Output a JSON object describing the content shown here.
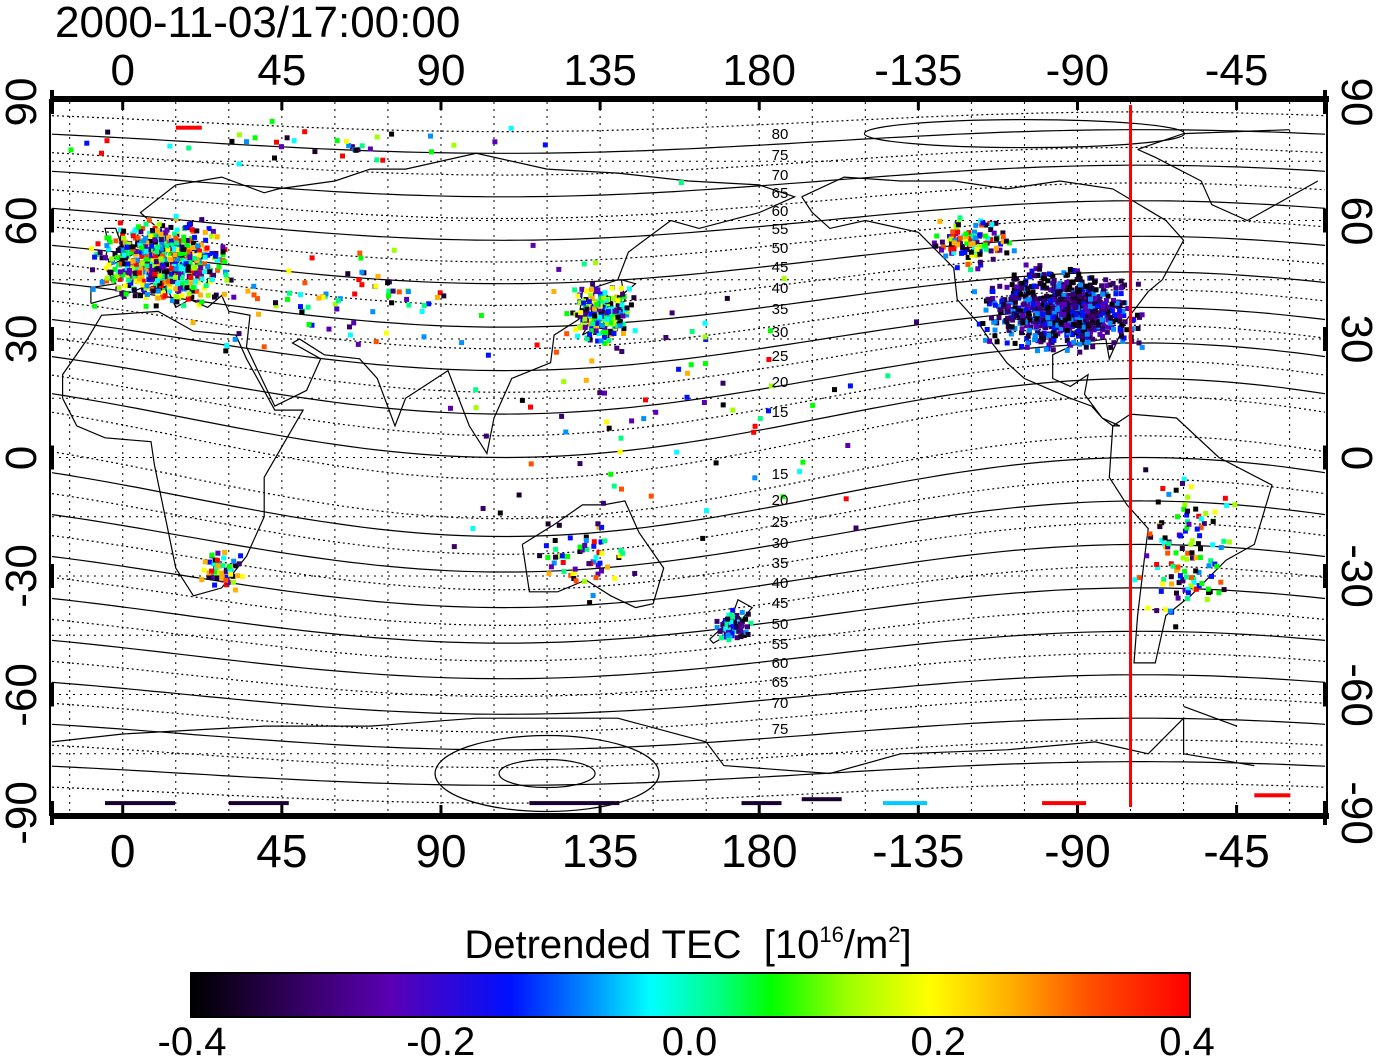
{
  "timestamp": "2000-11-03/17:00:00",
  "x_ticks": [
    "0",
    "45",
    "90",
    "135",
    "180",
    "-135",
    "-90",
    "-45"
  ],
  "y_ticks": [
    "90",
    "60",
    "30",
    "0",
    "-30",
    "-60",
    "-90"
  ],
  "mlat_north": [
    "80",
    "75",
    "70",
    "65",
    "60",
    "55",
    "50",
    "45",
    "40",
    "35",
    "30",
    "25",
    "20",
    "15"
  ],
  "mlat_south": [
    "15",
    "20",
    "25",
    "30",
    "35",
    "40",
    "45",
    "50",
    "55",
    "60",
    "65",
    "70",
    "75"
  ],
  "colorbar": {
    "title": "Detrended TEC",
    "unit_base": "[10",
    "unit_exp": "16",
    "unit_mid": "/m",
    "unit_exp2": "2",
    "unit_end": "]",
    "ticks": [
      "-0.4",
      "-0.2",
      "0.0",
      "0.2",
      "0.4"
    ],
    "range": [
      -0.4,
      0.4
    ]
  },
  "map": {
    "lon_range": [
      -20,
      340
    ],
    "lat_range": [
      -90,
      90
    ],
    "terminator_longitude": -75,
    "terminator_color": "#ff0000"
  }
}
